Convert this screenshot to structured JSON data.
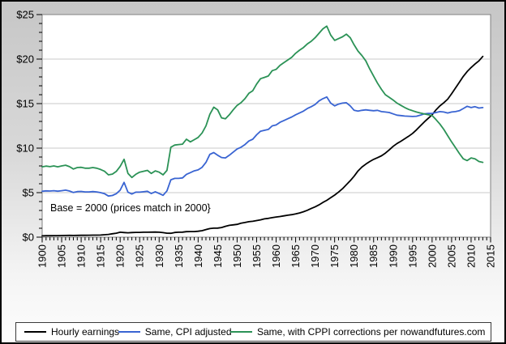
{
  "chart_data": {
    "type": "line",
    "title": "",
    "annotation": "Base = 2000 (prices match in 2000}",
    "legend_position": "bottom",
    "grid": "horizontal-major",
    "colors": {
      "plot_background": "#ffffff",
      "plot_border": "#808080",
      "gridline": "#c9c9c9",
      "tick": "#000000",
      "frame_border": "#000000",
      "chart_background_top": "#c6c6c6",
      "chart_background_bottom": "#fdfdfd",
      "legend_background": "#ffffff",
      "legend_border": "#3a3a3a"
    },
    "x_axis": {
      "min": 1900,
      "max": 2015,
      "major_step": 5,
      "minor_step": 1,
      "tick_labels": [
        "1900",
        "1905",
        "1910",
        "1915",
        "1920",
        "1925",
        "1930",
        "1935",
        "1940",
        "1945",
        "1950",
        "1955",
        "1960",
        "1965",
        "1970",
        "1975",
        "1980",
        "1985",
        "1990",
        "1995",
        "2000",
        "2005",
        "2010",
        "2015"
      ]
    },
    "y_axis": {
      "min": 0,
      "max": 25,
      "major_step": 5,
      "minor_step": 1,
      "tick_labels": [
        "$0",
        "$5",
        "$10",
        "$15",
        "$20",
        "$25"
      ]
    },
    "series": [
      {
        "name": "Hourly earnings",
        "color": "#000000",
        "x_start": 1900,
        "x_step": 1,
        "values": [
          0.15,
          0.16,
          0.16,
          0.17,
          0.17,
          0.18,
          0.19,
          0.2,
          0.19,
          0.2,
          0.21,
          0.21,
          0.22,
          0.23,
          0.23,
          0.24,
          0.27,
          0.31,
          0.38,
          0.45,
          0.55,
          0.52,
          0.49,
          0.52,
          0.54,
          0.54,
          0.55,
          0.55,
          0.56,
          0.57,
          0.55,
          0.51,
          0.45,
          0.44,
          0.53,
          0.55,
          0.56,
          0.62,
          0.63,
          0.63,
          0.66,
          0.73,
          0.85,
          0.96,
          1.01,
          1.02,
          1.08,
          1.22,
          1.33,
          1.38,
          1.44,
          1.56,
          1.65,
          1.74,
          1.78,
          1.86,
          1.95,
          2.05,
          2.11,
          2.19,
          2.26,
          2.32,
          2.39,
          2.46,
          2.53,
          2.61,
          2.72,
          2.85,
          3.02,
          3.22,
          3.4,
          3.63,
          3.9,
          4.14,
          4.43,
          4.73,
          5.06,
          5.44,
          5.88,
          6.34,
          6.85,
          7.44,
          7.87,
          8.2,
          8.49,
          8.74,
          8.93,
          9.14,
          9.44,
          9.8,
          10.2,
          10.52,
          10.77,
          11.05,
          11.34,
          11.65,
          12.05,
          12.5,
          12.95,
          13.35,
          13.75,
          14.3,
          14.75,
          15.1,
          15.5,
          16.1,
          16.75,
          17.4,
          18.05,
          18.6,
          19.05,
          19.45,
          19.8,
          20.3
        ]
      },
      {
        "name": "Same, CPI adjusted",
        "color": "#3964d2",
        "x_start": 1900,
        "x_step": 1,
        "values": [
          5.15,
          5.2,
          5.18,
          5.22,
          5.16,
          5.22,
          5.28,
          5.18,
          5.02,
          5.12,
          5.14,
          5.08,
          5.08,
          5.12,
          5.08,
          5.0,
          4.88,
          4.62,
          4.68,
          4.88,
          5.28,
          6.15,
          5.05,
          4.85,
          5.05,
          5.05,
          5.1,
          5.15,
          4.9,
          5.1,
          4.9,
          4.7,
          5.2,
          6.45,
          6.6,
          6.6,
          6.65,
          7.05,
          7.25,
          7.45,
          7.55,
          7.85,
          8.4,
          9.3,
          9.5,
          9.2,
          8.95,
          8.9,
          9.2,
          9.55,
          9.9,
          10.1,
          10.4,
          10.8,
          11.0,
          11.5,
          11.9,
          12.0,
          12.1,
          12.5,
          12.6,
          12.9,
          13.1,
          13.3,
          13.5,
          13.75,
          13.95,
          14.15,
          14.45,
          14.65,
          14.9,
          15.3,
          15.55,
          15.75,
          15.05,
          14.75,
          14.95,
          15.05,
          15.1,
          14.75,
          14.25,
          14.15,
          14.25,
          14.3,
          14.25,
          14.2,
          14.25,
          14.1,
          14.05,
          14.0,
          13.85,
          13.7,
          13.65,
          13.6,
          13.58,
          13.55,
          13.58,
          13.7,
          13.85,
          13.9,
          13.9,
          14.0,
          14.1,
          14.05,
          13.95,
          14.05,
          14.1,
          14.2,
          14.45,
          14.7,
          14.55,
          14.65,
          14.5,
          14.55
        ]
      },
      {
        "name": "Same, with CPPI corrections per nowandfutures.com",
        "color": "#2b9256",
        "x_start": 1900,
        "x_step": 1,
        "values": [
          7.9,
          7.98,
          7.92,
          8.0,
          7.9,
          8.0,
          8.08,
          7.92,
          7.65,
          7.82,
          7.85,
          7.75,
          7.75,
          7.82,
          7.75,
          7.6,
          7.4,
          7.0,
          7.08,
          7.38,
          7.95,
          8.75,
          7.15,
          6.7,
          7.05,
          7.3,
          7.4,
          7.5,
          7.15,
          7.45,
          7.3,
          7.0,
          7.5,
          10.1,
          10.35,
          10.4,
          10.45,
          11.0,
          10.7,
          10.95,
          11.2,
          11.7,
          12.5,
          13.8,
          14.6,
          14.3,
          13.4,
          13.3,
          13.75,
          14.3,
          14.8,
          15.1,
          15.55,
          16.15,
          16.45,
          17.2,
          17.8,
          17.95,
          18.1,
          18.7,
          18.85,
          19.3,
          19.6,
          19.9,
          20.2,
          20.65,
          21.0,
          21.3,
          21.7,
          22.0,
          22.4,
          22.9,
          23.4,
          23.7,
          22.7,
          22.1,
          22.3,
          22.5,
          22.8,
          22.4,
          21.6,
          20.9,
          20.4,
          19.8,
          18.9,
          18.1,
          17.3,
          16.6,
          16.0,
          15.7,
          15.4,
          15.05,
          14.8,
          14.55,
          14.35,
          14.2,
          14.05,
          13.95,
          13.85,
          13.75,
          13.65,
          13.2,
          12.7,
          12.1,
          11.4,
          10.7,
          10.05,
          9.4,
          8.8,
          8.6,
          8.9,
          8.8,
          8.5,
          8.4
        ]
      }
    ]
  }
}
